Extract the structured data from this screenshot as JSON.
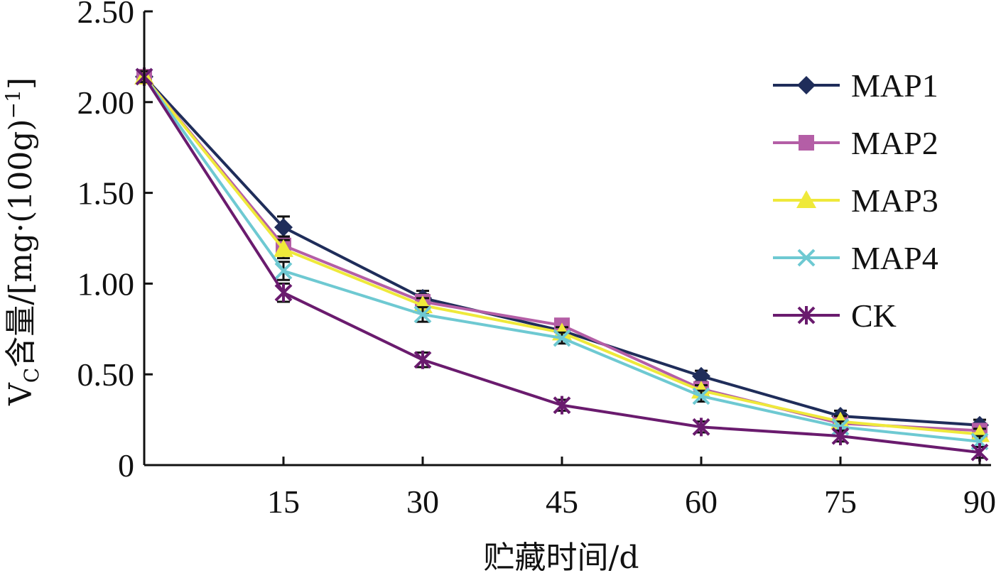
{
  "chart_data": {
    "type": "line",
    "x": [
      0,
      15,
      30,
      45,
      60,
      75,
      90
    ],
    "x_tick_labels": [
      "15",
      "30",
      "45",
      "60",
      "75",
      "90"
    ],
    "y_tick_labels": [
      "0",
      "0.50",
      "1.00",
      "1.50",
      "2.00",
      "2.50"
    ],
    "xlim": [
      0,
      90
    ],
    "ylim": [
      0,
      2.5
    ],
    "xlabel": "贮藏时间/d",
    "ylabel": {
      "main": "V",
      "subscript": "C",
      "rest": "含量/[mg·(100g)",
      "superscript": "−1",
      "close": "]"
    },
    "grid": false,
    "legend_position": "top-right",
    "series": [
      {
        "name": "MAP1",
        "color": "#1f2d5a",
        "marker": "diamond",
        "values": [
          2.14,
          1.31,
          0.92,
          0.74,
          0.49,
          0.27,
          0.22
        ],
        "errors": [
          0.03,
          0.06,
          0.04,
          0.03,
          0.03,
          0.03,
          0.03
        ]
      },
      {
        "name": "MAP2",
        "color": "#b45ea6",
        "marker": "square",
        "values": [
          2.14,
          1.21,
          0.9,
          0.77,
          0.42,
          0.23,
          0.19
        ],
        "errors": [
          0.03,
          0.05,
          0.04,
          0.03,
          0.03,
          0.03,
          0.03
        ]
      },
      {
        "name": "MAP3",
        "color": "#efe93a",
        "marker": "triangle",
        "values": [
          2.14,
          1.19,
          0.88,
          0.73,
          0.41,
          0.24,
          0.17
        ],
        "errors": [
          0.03,
          0.05,
          0.04,
          0.03,
          0.03,
          0.03,
          0.03
        ]
      },
      {
        "name": "MAP4",
        "color": "#6ec9d2",
        "marker": "x",
        "values": [
          2.14,
          1.07,
          0.83,
          0.7,
          0.38,
          0.21,
          0.13
        ],
        "errors": [
          0.03,
          0.05,
          0.04,
          0.03,
          0.03,
          0.03,
          0.03
        ]
      },
      {
        "name": "CK",
        "color": "#6a1b6e",
        "marker": "asterisk",
        "values": [
          2.14,
          0.95,
          0.58,
          0.33,
          0.21,
          0.16,
          0.07
        ],
        "errors": [
          0.03,
          0.05,
          0.04,
          0.03,
          0.03,
          0.03,
          0.03
        ]
      }
    ]
  }
}
